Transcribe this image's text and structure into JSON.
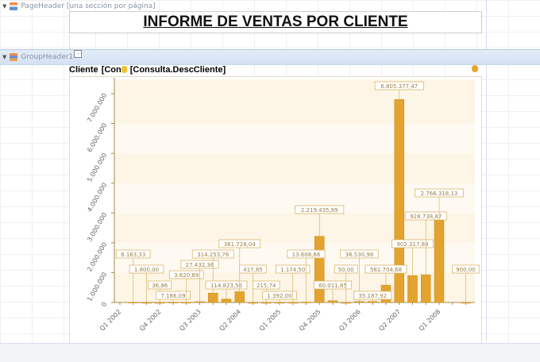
{
  "bands": {
    "page_header": "PageHeader [una sección por página]",
    "group_header": "GroupHeader1"
  },
  "title": "INFORME DE VENTAS POR CLIENTE",
  "field_row": {
    "label": "Cliente",
    "field1": "[Con",
    "field2": "[Consulta.DescCliente]"
  },
  "icons": {
    "band": "band-icon",
    "smart_tag": "smart-tag-icon",
    "field": "database-field-icon"
  },
  "colors": {
    "bar": "#e3a32e",
    "label_border": "#d9b56a",
    "band": "#fdf3df"
  },
  "chart_data": {
    "type": "bar",
    "ylim": [
      0,
      7000000
    ],
    "yticks": [
      "0",
      "1.000.000",
      "2.000.000",
      "3.000.000",
      "4.000.000",
      "5.000.000",
      "6.000.000",
      "7.000.000"
    ],
    "grid": true,
    "categories": [
      "Q1 2002",
      "Q2 2002",
      "Q3 2002",
      "Q4 2002",
      "Q1 2003",
      "Q2 2003",
      "Q3 2003",
      "Q4 2003",
      "Q1 2004",
      "Q2 2004",
      "Q3 2004",
      "Q4 2004",
      "Q1 2005",
      "Q2 2005",
      "Q3 2005",
      "Q4 2005",
      "Q1 2006",
      "Q2 2006",
      "Q3 2006",
      "Q4 2006",
      "Q1 2007",
      "Q2 2007",
      "Q3 2007",
      "Q4 2007",
      "Q1 2008",
      "Q2 2008",
      "Q3 2008"
    ],
    "xtick_labels": [
      "Q1 2002",
      "Q4 2002",
      "Q3 2003",
      "Q2 2004",
      "Q1 2005",
      "Q4 2005",
      "Q3 2006",
      "Q2 2007",
      "Q1 2008"
    ],
    "values": [
      null,
      6163.33,
      1800,
      36.86,
      7166.09,
      3620.89,
      27432.36,
      314253.76,
      114823.56,
      361728.04,
      417.85,
      215.74,
      1392,
      1174.5,
      13608.66,
      2219435.89,
      60011.85,
      50,
      36530.98,
      35187.92,
      581704.68,
      6805377.47,
      902317.88,
      928738.87,
      2766318.13,
      null,
      900
    ],
    "data_labels": [
      null,
      "6.163,33",
      "1.800,00",
      "36,86",
      "7.166,09",
      "3.620,89",
      "27.432,36",
      "314.253,76",
      "114.823,56",
      "361.728,04",
      "417,85",
      "215,74",
      "1.392,00",
      "1.174,50",
      "13.608,66",
      "2.219.435,89",
      "60.011,85",
      "50,00",
      "36.530,98",
      "35.187,92",
      "581.704,68",
      "6.805.377,47",
      "902.317,88",
      "928.738,87",
      "2.766.318,13",
      null,
      "900,00"
    ]
  }
}
